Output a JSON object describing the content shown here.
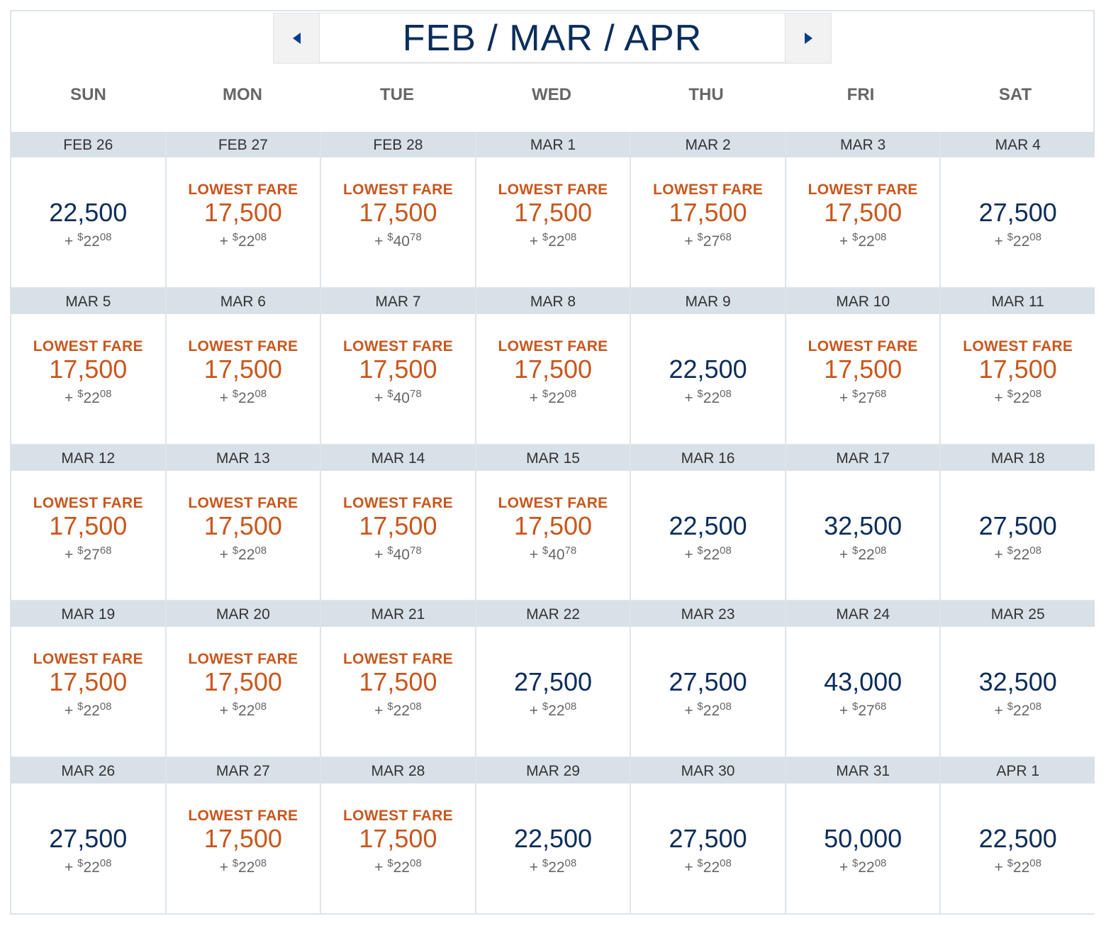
{
  "header": {
    "title": "FEB / MAR / APR",
    "prev_icon": "left-triangle",
    "next_icon": "right-triangle"
  },
  "weekdays": [
    "SUN",
    "MON",
    "TUE",
    "WED",
    "THU",
    "FRI",
    "SAT"
  ],
  "lowest_label": "LOWEST FARE",
  "plus": "+",
  "currency": "$",
  "colors": {
    "lowest": "#c9561c",
    "regular": "#0b2d5b",
    "date_bar": "#d8e0e8",
    "tax": "#666666"
  },
  "days": [
    {
      "date": "FEB 26",
      "miles": "22,500",
      "lowest": false,
      "tax_d": "22",
      "tax_c": "08"
    },
    {
      "date": "FEB 27",
      "miles": "17,500",
      "lowest": true,
      "tax_d": "22",
      "tax_c": "08"
    },
    {
      "date": "FEB 28",
      "miles": "17,500",
      "lowest": true,
      "tax_d": "40",
      "tax_c": "78"
    },
    {
      "date": "MAR 1",
      "miles": "17,500",
      "lowest": true,
      "tax_d": "22",
      "tax_c": "08"
    },
    {
      "date": "MAR 2",
      "miles": "17,500",
      "lowest": true,
      "tax_d": "27",
      "tax_c": "68"
    },
    {
      "date": "MAR 3",
      "miles": "17,500",
      "lowest": true,
      "tax_d": "22",
      "tax_c": "08"
    },
    {
      "date": "MAR 4",
      "miles": "27,500",
      "lowest": false,
      "tax_d": "22",
      "tax_c": "08"
    },
    {
      "date": "MAR 5",
      "miles": "17,500",
      "lowest": true,
      "tax_d": "22",
      "tax_c": "08"
    },
    {
      "date": "MAR 6",
      "miles": "17,500",
      "lowest": true,
      "tax_d": "22",
      "tax_c": "08"
    },
    {
      "date": "MAR 7",
      "miles": "17,500",
      "lowest": true,
      "tax_d": "40",
      "tax_c": "78"
    },
    {
      "date": "MAR 8",
      "miles": "17,500",
      "lowest": true,
      "tax_d": "22",
      "tax_c": "08"
    },
    {
      "date": "MAR 9",
      "miles": "22,500",
      "lowest": false,
      "tax_d": "22",
      "tax_c": "08"
    },
    {
      "date": "MAR 10",
      "miles": "17,500",
      "lowest": true,
      "tax_d": "27",
      "tax_c": "68"
    },
    {
      "date": "MAR 11",
      "miles": "17,500",
      "lowest": true,
      "tax_d": "22",
      "tax_c": "08"
    },
    {
      "date": "MAR 12",
      "miles": "17,500",
      "lowest": true,
      "tax_d": "27",
      "tax_c": "68"
    },
    {
      "date": "MAR 13",
      "miles": "17,500",
      "lowest": true,
      "tax_d": "22",
      "tax_c": "08"
    },
    {
      "date": "MAR 14",
      "miles": "17,500",
      "lowest": true,
      "tax_d": "40",
      "tax_c": "78"
    },
    {
      "date": "MAR 15",
      "miles": "17,500",
      "lowest": true,
      "tax_d": "40",
      "tax_c": "78"
    },
    {
      "date": "MAR 16",
      "miles": "22,500",
      "lowest": false,
      "tax_d": "22",
      "tax_c": "08"
    },
    {
      "date": "MAR 17",
      "miles": "32,500",
      "lowest": false,
      "tax_d": "22",
      "tax_c": "08"
    },
    {
      "date": "MAR 18",
      "miles": "27,500",
      "lowest": false,
      "tax_d": "22",
      "tax_c": "08"
    },
    {
      "date": "MAR 19",
      "miles": "17,500",
      "lowest": true,
      "tax_d": "22",
      "tax_c": "08"
    },
    {
      "date": "MAR 20",
      "miles": "17,500",
      "lowest": true,
      "tax_d": "22",
      "tax_c": "08"
    },
    {
      "date": "MAR 21",
      "miles": "17,500",
      "lowest": true,
      "tax_d": "22",
      "tax_c": "08"
    },
    {
      "date": "MAR 22",
      "miles": "27,500",
      "lowest": false,
      "tax_d": "22",
      "tax_c": "08"
    },
    {
      "date": "MAR 23",
      "miles": "27,500",
      "lowest": false,
      "tax_d": "22",
      "tax_c": "08"
    },
    {
      "date": "MAR 24",
      "miles": "43,000",
      "lowest": false,
      "tax_d": "27",
      "tax_c": "68"
    },
    {
      "date": "MAR 25",
      "miles": "32,500",
      "lowest": false,
      "tax_d": "22",
      "tax_c": "08"
    },
    {
      "date": "MAR 26",
      "miles": "27,500",
      "lowest": false,
      "tax_d": "22",
      "tax_c": "08"
    },
    {
      "date": "MAR 27",
      "miles": "17,500",
      "lowest": true,
      "tax_d": "22",
      "tax_c": "08"
    },
    {
      "date": "MAR 28",
      "miles": "17,500",
      "lowest": true,
      "tax_d": "22",
      "tax_c": "08"
    },
    {
      "date": "MAR 29",
      "miles": "22,500",
      "lowest": false,
      "tax_d": "22",
      "tax_c": "08"
    },
    {
      "date": "MAR 30",
      "miles": "27,500",
      "lowest": false,
      "tax_d": "22",
      "tax_c": "08"
    },
    {
      "date": "MAR 31",
      "miles": "50,000",
      "lowest": false,
      "tax_d": "22",
      "tax_c": "08"
    },
    {
      "date": "APR 1",
      "miles": "22,500",
      "lowest": false,
      "tax_d": "22",
      "tax_c": "08"
    }
  ]
}
